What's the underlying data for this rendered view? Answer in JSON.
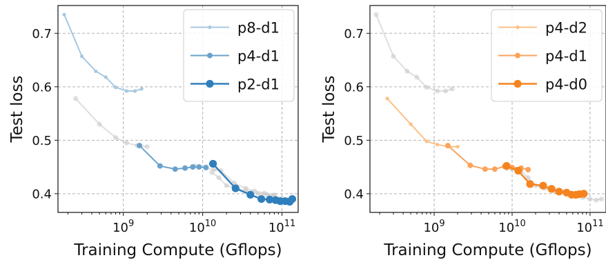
{
  "chart_data": [
    {
      "type": "line",
      "xlabel": "Training Compute (Gflops)",
      "ylabel": "Test loss",
      "xscale": "log",
      "xlim": [
        150000000.0,
        160000000000.0
      ],
      "ylim": [
        0.365,
        0.752
      ],
      "x_tick_labels": [
        {
          "value": 1000000000.0,
          "base": "10",
          "exp": "9"
        },
        {
          "value": 10000000000.0,
          "base": "10",
          "exp": "10"
        },
        {
          "value": 100000000000.0,
          "base": "10",
          "exp": "11"
        }
      ],
      "y_ticks": [
        0.4,
        0.5,
        0.6,
        0.7
      ],
      "y_tick_labels": [
        "0.4",
        "0.5",
        "0.6",
        "0.7"
      ],
      "grid": true,
      "legend_position": "top-right",
      "series": [
        {
          "name": "p8-d1",
          "color": "#a6c8e0",
          "role": "highlight",
          "marker": "small",
          "x": [
            180000000.0,
            300000000.0,
            450000000.0,
            600000000.0,
            800000000.0,
            1100000000.0,
            1400000000.0,
            1700000000.0
          ],
          "y": [
            0.735,
            0.657,
            0.629,
            0.618,
            0.599,
            0.592,
            0.592,
            0.596
          ]
        },
        {
          "name": "p4-d1",
          "color": "#6aa2cb",
          "role": "highlight",
          "marker": "medium",
          "x": [
            1600000000.0,
            2900000000.0,
            4500000000.0,
            6000000000.0,
            7500000000.0,
            9000000000.0,
            11000000000.0
          ],
          "y": [
            0.49,
            0.452,
            0.446,
            0.448,
            0.45,
            0.45,
            0.449
          ]
        },
        {
          "name": "p2-d1",
          "color": "#2f7fbd",
          "role": "highlight",
          "marker": "large",
          "x": [
            13500000000.0,
            26000000000.0,
            40000000000.0,
            55000000000.0,
            70000000000.0,
            83000000000.0,
            95000000000.0,
            110000000000.0,
            125000000000.0,
            135000000000.0
          ],
          "y": [
            0.456,
            0.41,
            0.398,
            0.39,
            0.389,
            0.388,
            0.386,
            0.386,
            0.385,
            0.39
          ]
        },
        {
          "name": "",
          "color": "#c8c8c8",
          "role": "background",
          "x": [
            250000000.0,
            500000000.0,
            800000000.0,
            1100000000.0,
            1500000000.0,
            2000000000.0
          ],
          "y": [
            0.578,
            0.53,
            0.505,
            0.495,
            0.49,
            0.488
          ]
        },
        {
          "name": "",
          "color": "#c8c8c8",
          "role": "background",
          "x": [
            8000000000.0,
            11000000000.0,
            14000000000.0,
            17000000000.0,
            25000000000.0,
            35000000000.0,
            45000000000.0,
            60000000000.0,
            80000000000.0
          ],
          "y": [
            0.452,
            0.448,
            0.445,
            0.443,
            0.42,
            0.41,
            0.405,
            0.401,
            0.398
          ]
        },
        {
          "name": "",
          "color": "#c8c8c8",
          "role": "background",
          "x": [
            13000000000.0,
            16000000000.0,
            20000000000.0,
            25000000000.0,
            35000000000.0,
            50000000000.0,
            65000000000.0,
            80000000000.0,
            100000000000.0,
            120000000000.0
          ],
          "y": [
            0.44,
            0.43,
            0.415,
            0.412,
            0.405,
            0.4,
            0.398,
            0.396,
            0.392,
            0.389
          ]
        }
      ]
    },
    {
      "type": "line",
      "xlabel": "Training Compute (Gflops)",
      "ylabel": "Test loss",
      "xscale": "log",
      "xlim": [
        150000000.0,
        160000000000.0
      ],
      "ylim": [
        0.365,
        0.752
      ],
      "x_tick_labels": [
        {
          "value": 1000000000.0,
          "base": "10",
          "exp": "9"
        },
        {
          "value": 10000000000.0,
          "base": "10",
          "exp": "10"
        },
        {
          "value": 100000000000.0,
          "base": "10",
          "exp": "11"
        }
      ],
      "y_ticks": [
        0.4,
        0.5,
        0.6,
        0.7
      ],
      "y_tick_labels": [
        "0.4",
        "0.5",
        "0.6",
        "0.7"
      ],
      "grid": true,
      "legend_position": "top-right",
      "series": [
        {
          "name": "",
          "color": "#c8c8c8",
          "role": "background",
          "x": [
            180000000.0,
            300000000.0,
            450000000.0,
            600000000.0,
            800000000.0,
            1100000000.0,
            1400000000.0,
            1700000000.0
          ],
          "y": [
            0.735,
            0.657,
            0.629,
            0.618,
            0.599,
            0.592,
            0.592,
            0.596
          ]
        },
        {
          "name": "",
          "color": "#c8c8c8",
          "role": "background",
          "x": [
            8500000000.0,
            10000000000.0,
            13000000000.0,
            16000000000.0,
            20000000000.0,
            26000000000.0,
            35000000000.0,
            45000000000.0,
            55000000000.0,
            65000000000.0,
            80000000000.0,
            100000000000.0,
            120000000000.0,
            140000000000.0
          ],
          "y": [
            0.447,
            0.446,
            0.443,
            0.43,
            0.415,
            0.41,
            0.405,
            0.403,
            0.4,
            0.395,
            0.393,
            0.39,
            0.388,
            0.39
          ]
        },
        {
          "name": "p4-d2",
          "color": "#fdc086",
          "role": "highlight",
          "marker": "small",
          "x": [
            250000000.0,
            500000000.0,
            800000000.0,
            1100000000.0,
            1500000000.0,
            2000000000.0
          ],
          "y": [
            0.578,
            0.53,
            0.498,
            0.492,
            0.488,
            0.488
          ]
        },
        {
          "name": "p4-d1",
          "color": "#fba35c",
          "role": "highlight",
          "marker": "medium",
          "x": [
            1500000000.0,
            2900000000.0,
            4500000000.0,
            6000000000.0,
            8000000000.0,
            10000000000.0,
            13000000000.0,
            16000000000.0
          ],
          "y": [
            0.49,
            0.453,
            0.446,
            0.446,
            0.451,
            0.449,
            0.448,
            0.445
          ]
        },
        {
          "name": "p4-d0",
          "color": "#f5841f",
          "role": "highlight",
          "marker": "large",
          "x": [
            8500000000.0,
            12000000000.0,
            17000000000.0,
            25000000000.0,
            32000000000.0,
            40000000000.0,
            50000000000.0,
            58000000000.0,
            66000000000.0,
            73000000000.0,
            83000000000.0
          ],
          "y": [
            0.452,
            0.443,
            0.418,
            0.415,
            0.409,
            0.404,
            0.402,
            0.398,
            0.398,
            0.399,
            0.4
          ]
        }
      ]
    }
  ]
}
